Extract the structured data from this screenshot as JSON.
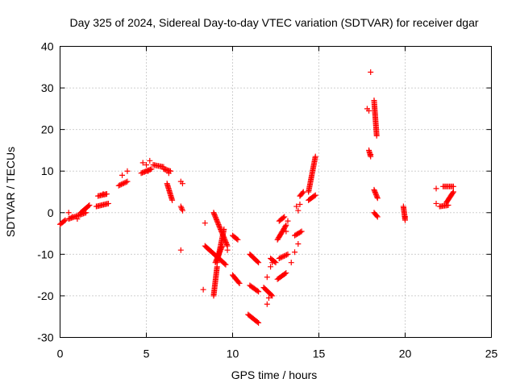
{
  "chart_data": {
    "type": "scatter",
    "title": "Day 325 of 2024, Sidereal Day-to-day VTEC variation (SDTVAR) for receiver dgar",
    "xlabel": "GPS time / hours",
    "ylabel": "SDTVAR / TECUs",
    "xlim": [
      0,
      25
    ],
    "ylim": [
      -30,
      40
    ],
    "xticks": [
      0,
      5,
      10,
      15,
      20,
      25
    ],
    "yticks": [
      -30,
      -20,
      -10,
      0,
      10,
      20,
      30,
      40
    ],
    "grid": true,
    "marker": "plus",
    "color": "#ff0000",
    "segments": [
      {
        "from": [
          0.0,
          -2.8
        ],
        "to": [
          0.3,
          -1.8
        ]
      },
      {
        "from": [
          0.5,
          -1.5
        ],
        "to": [
          1.5,
          0.0
        ]
      },
      {
        "from": [
          1.2,
          0.0
        ],
        "to": [
          1.7,
          1.8
        ]
      },
      {
        "from": [
          2.1,
          1.5
        ],
        "to": [
          2.8,
          2.2
        ]
      },
      {
        "from": [
          2.2,
          4.0
        ],
        "to": [
          2.7,
          4.5
        ]
      },
      {
        "from": [
          3.4,
          6.5
        ],
        "to": [
          3.9,
          7.5
        ]
      },
      {
        "from": [
          4.7,
          9.5
        ],
        "to": [
          5.3,
          10.5
        ]
      },
      {
        "from": [
          5.4,
          11.5
        ],
        "to": [
          6.0,
          11.0
        ]
      },
      {
        "from": [
          6.0,
          10.5
        ],
        "to": [
          6.4,
          10.0
        ]
      },
      {
        "from": [
          6.2,
          7.0
        ],
        "to": [
          6.5,
          3.0
        ]
      },
      {
        "from": [
          7.0,
          1.5
        ],
        "to": [
          7.1,
          0.5
        ]
      },
      {
        "from": [
          8.9,
          0.0
        ],
        "to": [
          9.7,
          -8.0
        ]
      },
      {
        "from": [
          9.5,
          -4.0
        ],
        "to": [
          9.1,
          -12.0
        ]
      },
      {
        "from": [
          9.1,
          -13.0
        ],
        "to": [
          8.9,
          -20.0
        ]
      },
      {
        "from": [
          9.0,
          -12.0
        ],
        "to": [
          9.4,
          -8.0
        ]
      },
      {
        "from": [
          8.4,
          -8.0
        ],
        "to": [
          9.6,
          -12.5
        ]
      },
      {
        "from": [
          10.0,
          -5.5
        ],
        "to": [
          10.3,
          -6.5
        ]
      },
      {
        "from": [
          10.0,
          -15.0
        ],
        "to": [
          10.4,
          -17.0
        ]
      },
      {
        "from": [
          11.0,
          -10.0
        ],
        "to": [
          11.5,
          -12.0
        ]
      },
      {
        "from": [
          11.0,
          -17.5
        ],
        "to": [
          11.5,
          -19.0
        ]
      },
      {
        "from": [
          10.9,
          -24.5
        ],
        "to": [
          11.5,
          -26.5
        ]
      },
      {
        "from": [
          11.8,
          -18.0
        ],
        "to": [
          12.3,
          -20.0
        ]
      },
      {
        "from": [
          12.2,
          -11.0
        ],
        "to": [
          12.5,
          -12.0
        ]
      },
      {
        "from": [
          12.6,
          -6.5
        ],
        "to": [
          13.1,
          -3.0
        ]
      },
      {
        "from": [
          12.7,
          -2.0
        ],
        "to": [
          13.0,
          -1.0
        ]
      },
      {
        "from": [
          12.6,
          -16.0
        ],
        "to": [
          13.1,
          -14.5
        ]
      },
      {
        "from": [
          12.7,
          -11.0
        ],
        "to": [
          13.2,
          -10.0
        ]
      },
      {
        "from": [
          13.6,
          -5.5
        ],
        "to": [
          14.0,
          -4.5
        ]
      },
      {
        "from": [
          13.9,
          4.0
        ],
        "to": [
          14.1,
          5.0
        ]
      },
      {
        "from": [
          14.4,
          5.0
        ],
        "to": [
          14.8,
          13.5
        ]
      },
      {
        "from": [
          14.4,
          3.0
        ],
        "to": [
          14.8,
          4.2
        ]
      },
      {
        "from": [
          17.9,
          15.0
        ],
        "to": [
          18.0,
          13.5
        ]
      },
      {
        "from": [
          18.2,
          27.0
        ],
        "to": [
          18.35,
          18.5
        ]
      },
      {
        "from": [
          18.2,
          5.5
        ],
        "to": [
          18.4,
          3.5
        ]
      },
      {
        "from": [
          18.2,
          0.0
        ],
        "to": [
          18.4,
          -1.0
        ]
      },
      {
        "from": [
          19.9,
          1.5
        ],
        "to": [
          20.0,
          -1.8
        ]
      },
      {
        "from": [
          22.0,
          1.5
        ],
        "to": [
          22.5,
          1.8
        ]
      },
      {
        "from": [
          22.2,
          6.3
        ],
        "to": [
          22.8,
          6.3
        ]
      },
      {
        "from": [
          22.4,
          2.5
        ],
        "to": [
          22.8,
          5.0
        ]
      }
    ],
    "points": [
      [
        0.5,
        0.0
      ],
      [
        0.7,
        -1.0
      ],
      [
        1.0,
        -1.5
      ],
      [
        2.5,
        4.5
      ],
      [
        2.7,
        4.5
      ],
      [
        3.6,
        9.0
      ],
      [
        3.9,
        10.0
      ],
      [
        4.8,
        12.0
      ],
      [
        5.0,
        11.5
      ],
      [
        5.2,
        12.5
      ],
      [
        5.1,
        10.0
      ],
      [
        6.3,
        9.5
      ],
      [
        7.0,
        7.5
      ],
      [
        7.1,
        7.0
      ],
      [
        7.0,
        -9.0
      ],
      [
        8.4,
        -2.5
      ],
      [
        8.3,
        -18.5
      ],
      [
        9.7,
        -9.0
      ],
      [
        12.0,
        -15.5
      ],
      [
        12.1,
        -20.5
      ],
      [
        12.0,
        -22.0
      ],
      [
        12.2,
        -13.0
      ],
      [
        12.3,
        -12.0
      ],
      [
        13.1,
        -4.5
      ],
      [
        13.2,
        -2.0
      ],
      [
        13.4,
        -12.0
      ],
      [
        13.6,
        -9.5
      ],
      [
        13.8,
        -7.5
      ],
      [
        13.7,
        1.5
      ],
      [
        13.8,
        0.5
      ],
      [
        13.9,
        2.0
      ],
      [
        18.0,
        33.8
      ],
      [
        17.8,
        25.0
      ],
      [
        17.9,
        24.5
      ],
      [
        18.0,
        14.0
      ],
      [
        20.0,
        -1.0
      ],
      [
        21.8,
        5.8
      ],
      [
        21.8,
        2.2
      ]
    ]
  }
}
